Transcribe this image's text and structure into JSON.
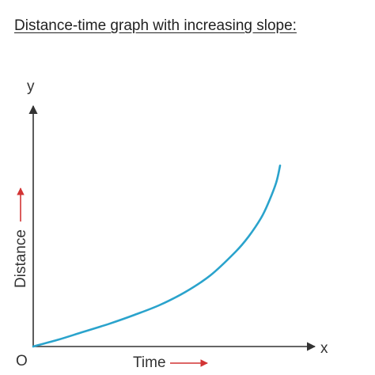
{
  "page": {
    "title": "Distance-time graph with increasing slope:"
  },
  "chart_data": {
    "type": "line",
    "title": "Distance-time graph with increasing slope:",
    "xlabel": "Time",
    "ylabel": "Distance",
    "x_axis_letter": "x",
    "y_axis_letter": "y",
    "origin_label": "O",
    "xlim": [
      0,
      10
    ],
    "ylim": [
      0,
      10
    ],
    "grid": false,
    "legend": "none",
    "series": [
      {
        "x": [
          0,
          1,
          2,
          3,
          4,
          5,
          6,
          7,
          8,
          8.5,
          9,
          9.3,
          9.6,
          9.75
        ],
        "y": [
          0,
          0.35,
          0.75,
          1.15,
          1.6,
          2.1,
          2.75,
          3.6,
          4.8,
          5.55,
          6.5,
          7.3,
          8.3,
          9.15
        ]
      }
    ],
    "colors": {
      "curve": "#2aa3cc",
      "axis": "#333333",
      "label_arrow": "#d23434"
    }
  }
}
